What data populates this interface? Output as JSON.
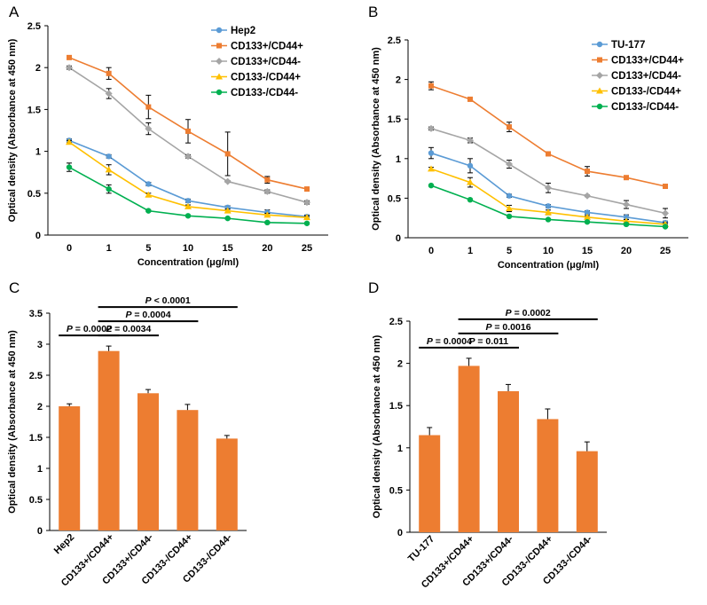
{
  "chart_data": [
    {
      "panel": "A",
      "type": "line",
      "categories": [
        "0",
        "1",
        "5",
        "10",
        "15",
        "20",
        "25"
      ],
      "xlabel": "Concentration (μg/ml)",
      "ylabel": "Optical density (Absorbance at 450 nm)",
      "ylim": [
        0,
        2.5
      ],
      "yticks": [
        "0",
        "0.5",
        "1",
        "1.5",
        "2",
        "2.5"
      ],
      "legend": "top-right",
      "series": [
        {
          "name": "Hep2",
          "color": "#5b9bd5",
          "marker": "circle",
          "values": [
            1.13,
            0.94,
            0.61,
            0.41,
            0.33,
            0.27,
            0.22
          ],
          "errors": [
            0.02,
            0.02,
            0.02,
            0.02,
            0.02,
            0.03,
            0.02
          ]
        },
        {
          "name": "CD133+/CD44+",
          "color": "#ed7d31",
          "marker": "square",
          "values": [
            2.12,
            1.93,
            1.53,
            1.24,
            0.97,
            0.66,
            0.55
          ],
          "errors": [
            0.02,
            0.07,
            0.14,
            0.14,
            0.26,
            0.04,
            0.02
          ]
        },
        {
          "name": "CD133+/CD44-",
          "color": "#a5a5a5",
          "marker": "diamond",
          "values": [
            2.0,
            1.69,
            1.27,
            0.94,
            0.64,
            0.52,
            0.39
          ],
          "errors": [
            0.02,
            0.06,
            0.07,
            0.02,
            0.01,
            0.02,
            0.02
          ]
        },
        {
          "name": "CD133-/CD44+",
          "color": "#ffc000",
          "marker": "triangle",
          "values": [
            1.11,
            0.78,
            0.48,
            0.34,
            0.29,
            0.24,
            0.21
          ],
          "errors": [
            0.02,
            0.06,
            0.02,
            0.02,
            0.02,
            0.02,
            0.02
          ]
        },
        {
          "name": "CD133-/CD44-",
          "color": "#00b050",
          "marker": "circle",
          "values": [
            0.81,
            0.55,
            0.29,
            0.23,
            0.2,
            0.15,
            0.14
          ],
          "errors": [
            0.05,
            0.05,
            0.01,
            0.01,
            0.01,
            0.01,
            0.01
          ]
        }
      ]
    },
    {
      "panel": "B",
      "type": "line",
      "categories": [
        "0",
        "1",
        "5",
        "10",
        "15",
        "20",
        "25"
      ],
      "xlabel": "Concentration (μg/ml)",
      "ylabel": "Optical density (Absorbance at 450 nm)",
      "ylim": [
        0,
        2.5
      ],
      "yticks": [
        "0",
        "0.5",
        "1",
        "1.5",
        "2",
        "2.5"
      ],
      "legend": "top-right",
      "series": [
        {
          "name": "TU-177",
          "color": "#5b9bd5",
          "marker": "circle",
          "values": [
            1.07,
            0.91,
            0.53,
            0.4,
            0.32,
            0.26,
            0.19
          ],
          "errors": [
            0.07,
            0.09,
            0.02,
            0.02,
            0.02,
            0.03,
            0.02
          ]
        },
        {
          "name": "CD133+/CD44+",
          "color": "#ed7d31",
          "marker": "square",
          "values": [
            1.92,
            1.75,
            1.4,
            1.06,
            0.84,
            0.76,
            0.65
          ],
          "errors": [
            0.05,
            0.01,
            0.06,
            0.01,
            0.06,
            0.01,
            0.01
          ]
        },
        {
          "name": "CD133+/CD44-",
          "color": "#a5a5a5",
          "marker": "diamond",
          "values": [
            1.38,
            1.23,
            0.93,
            0.63,
            0.53,
            0.42,
            0.31
          ],
          "errors": [
            0.02,
            0.03,
            0.05,
            0.06,
            0.01,
            0.05,
            0.06
          ]
        },
        {
          "name": "CD133-/CD44+",
          "color": "#ffc000",
          "marker": "triangle",
          "values": [
            0.87,
            0.7,
            0.37,
            0.32,
            0.26,
            0.21,
            0.17
          ],
          "errors": [
            0.02,
            0.06,
            0.04,
            0.03,
            0.02,
            0.02,
            0.02
          ]
        },
        {
          "name": "CD133-/CD44-",
          "color": "#00b050",
          "marker": "circle",
          "values": [
            0.66,
            0.48,
            0.27,
            0.23,
            0.2,
            0.17,
            0.14
          ],
          "errors": [
            0.01,
            0.01,
            0.01,
            0.01,
            0.01,
            0.01,
            0.01
          ]
        }
      ]
    },
    {
      "panel": "C",
      "type": "bar",
      "categories": [
        "Hep2",
        "CD133+/CD44+",
        "CD133+/CD44-",
        "CD133-/CD44+",
        "CD133-/CD44-"
      ],
      "values": [
        2.0,
        2.89,
        2.21,
        1.94,
        1.48
      ],
      "errors": [
        0.04,
        0.08,
        0.06,
        0.09,
        0.05
      ],
      "color": "#ed7d31",
      "ylabel": "Optical density (Absorbance at 450 nm)",
      "ylim": [
        0,
        3.5
      ],
      "yticks": [
        "0",
        "0.5",
        "1",
        "1.5",
        "2",
        "2.5",
        "3",
        "3.5"
      ],
      "annotations": [
        {
          "from": 0,
          "to": 1,
          "label": "P = 0.0002"
        },
        {
          "from": 1,
          "to": 2,
          "label": "P = 0.0034"
        },
        {
          "from": 1,
          "to": 3,
          "label": "P = 0.0004"
        },
        {
          "from": 1,
          "to": 4,
          "label": "P < 0.0001"
        }
      ]
    },
    {
      "panel": "D",
      "type": "bar",
      "categories": [
        "TU-177",
        "CD133+/CD44+",
        "CD133+/CD44-",
        "CD133-/CD44+",
        "CD133-/CD44-"
      ],
      "values": [
        1.15,
        1.97,
        1.67,
        1.34,
        0.96
      ],
      "errors": [
        0.09,
        0.09,
        0.08,
        0.12,
        0.11
      ],
      "color": "#ed7d31",
      "ylabel": "Optical density (Absorbance at 450 nm)",
      "ylim": [
        0,
        2.5
      ],
      "yticks": [
        "0",
        "0.5",
        "1",
        "1.5",
        "2",
        "2.5"
      ],
      "annotations": [
        {
          "from": 0,
          "to": 1,
          "label": "P = 0.0004"
        },
        {
          "from": 1,
          "to": 2,
          "label": "P = 0.011"
        },
        {
          "from": 1,
          "to": 3,
          "label": "P = 0.0016"
        },
        {
          "from": 1,
          "to": 4,
          "label": "P = 0.0002"
        }
      ]
    }
  ]
}
